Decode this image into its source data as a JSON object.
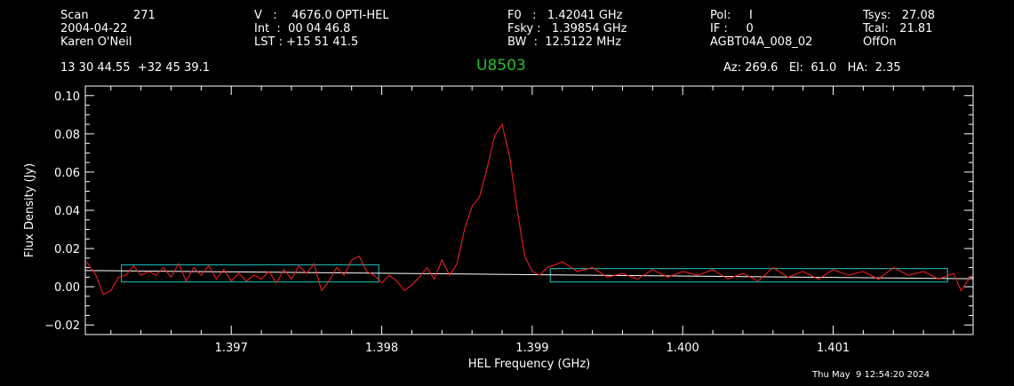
{
  "header": {
    "scan_label": "Scan",
    "scan_number": "271",
    "date": "2004-04-22",
    "observer": "Karen O'Neil",
    "velocity": "V   :    4676.0 OPTI-HEL",
    "int_time": "Int  :  00 04 46.8",
    "lst": "LST : +15 51 41.5",
    "f0": "F0   :   1.42041 GHz",
    "fsky": "Fsky :   1.39854 GHz",
    "bw": "BW  :  12.5122 MHz",
    "pol": "Pol:     I",
    "if": "IF :     0",
    "project": "AGBT04A_008_02",
    "tsys": "Tsys:   27.08",
    "tcal": "Tcal:   21.81",
    "procedure": "OffOn",
    "coords": "13 30 44.55  +32 45 39.1",
    "source": "U8503",
    "az_el_ha": "Az: 269.6   El:  61.0   HA:  2.35"
  },
  "footer": {
    "timestamp": "Thu May  9 12:54:20 2024"
  },
  "colors": {
    "background": "#000000",
    "spectrum": "#ff2020",
    "baseline": "#ffffff",
    "region_box": "#1ec8c8",
    "source_title": "#22c02a"
  },
  "chart_data": {
    "type": "line",
    "xlabel": "HEL Frequency (GHz)",
    "ylabel": "Flux Density (Jy)",
    "xlim": [
      1.39603,
      1.40193
    ],
    "ylim": [
      -0.025,
      0.105
    ],
    "x_ticks": [
      1.397,
      1.398,
      1.399,
      1.4,
      1.401
    ],
    "x_tick_labels": [
      "1.397",
      "1.398",
      "1.399",
      "1.400",
      "1.401"
    ],
    "y_ticks": [
      -0.02,
      0.0,
      0.02,
      0.04,
      0.06,
      0.08,
      0.1
    ],
    "y_tick_labels": [
      "−0.02",
      "0.00",
      "0.02",
      "0.04",
      "0.06",
      "0.08",
      "0.10"
    ],
    "series": [
      {
        "values_x": [
          1.39604,
          1.3961,
          1.39615,
          1.3962,
          1.39625,
          1.3963,
          1.39635,
          1.3964,
          1.39645,
          1.3965,
          1.39655,
          1.3966,
          1.39665,
          1.3967,
          1.39675,
          1.3968,
          1.39685,
          1.3969,
          1.39695,
          1.397,
          1.39705,
          1.3971,
          1.39715,
          1.3972,
          1.39725,
          1.3973,
          1.39735,
          1.3974,
          1.39745,
          1.3975,
          1.39755,
          1.3976,
          1.39765,
          1.3977,
          1.39775,
          1.3978,
          1.39785,
          1.3979,
          1.39795,
          1.398,
          1.39805,
          1.3981,
          1.39815,
          1.3982,
          1.39825,
          1.3983,
          1.39835,
          1.3984,
          1.39845,
          1.3985,
          1.39855,
          1.3986,
          1.39865,
          1.3987,
          1.39875,
          1.3988,
          1.39885,
          1.3989,
          1.39895,
          1.399,
          1.39905,
          1.3991,
          1.3992,
          1.3993,
          1.3994,
          1.3995,
          1.3996,
          1.3997,
          1.3998,
          1.3999,
          1.4,
          1.4001,
          1.4002,
          1.4003,
          1.4004,
          1.4005,
          1.4006,
          1.4007,
          1.4008,
          1.4009,
          1.401,
          1.4011,
          1.4012,
          1.4013,
          1.4014,
          1.4015,
          1.4016,
          1.4017,
          1.4018,
          1.40185,
          1.40192
        ],
        "values_y": [
          0.013,
          0.006,
          -0.004,
          -0.002,
          0.005,
          0.006,
          0.011,
          0.006,
          0.008,
          0.006,
          0.01,
          0.005,
          0.012,
          0.003,
          0.01,
          0.006,
          0.011,
          0.004,
          0.009,
          0.003,
          0.007,
          0.003,
          0.006,
          0.004,
          0.008,
          0.002,
          0.009,
          0.004,
          0.011,
          0.007,
          0.012,
          -0.002,
          0.003,
          0.01,
          0.006,
          0.014,
          0.016,
          0.008,
          0.006,
          0.002,
          0.006,
          0.003,
          -0.002,
          0.001,
          0.005,
          0.01,
          0.004,
          0.014,
          0.006,
          0.012,
          0.03,
          0.042,
          0.047,
          0.062,
          0.079,
          0.085,
          0.068,
          0.04,
          0.016,
          0.008,
          0.006,
          0.01,
          0.013,
          0.008,
          0.01,
          0.005,
          0.007,
          0.004,
          0.009,
          0.005,
          0.008,
          0.006,
          0.009,
          0.004,
          0.007,
          0.003,
          0.01,
          0.005,
          0.008,
          0.004,
          0.009,
          0.006,
          0.008,
          0.004,
          0.01,
          0.006,
          0.008,
          0.004,
          0.007,
          -0.002,
          0.006
        ]
      },
      {
        "values_x": [
          1.39603,
          1.40193
        ],
        "values_y": [
          0.0085,
          0.0042
        ]
      }
    ],
    "regions": [
      {
        "x": [
          1.39627,
          1.39798
        ],
        "y": [
          0.0025,
          0.0115
        ]
      },
      {
        "x": [
          1.39912,
          1.40176
        ],
        "y": [
          0.0025,
          0.0095
        ]
      }
    ]
  }
}
